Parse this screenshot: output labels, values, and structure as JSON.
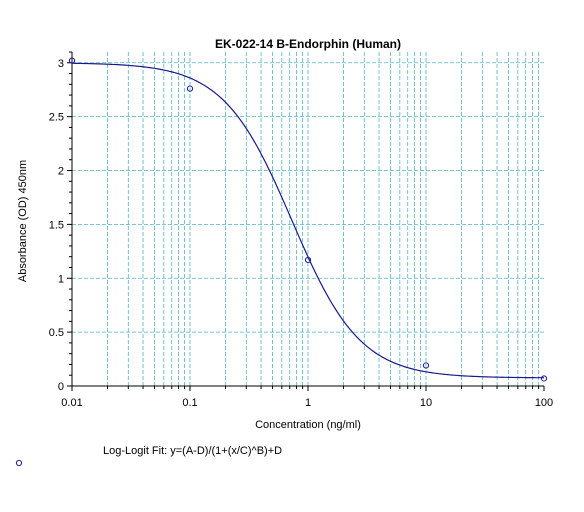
{
  "chart_data": {
    "type": "scatter",
    "title": "EK-022-14 B-Endorphin (Human)",
    "xlabel": "Concentration (ng/ml)",
    "ylabel": "Absorbance (OD) 450nm",
    "x_scale": "log",
    "xlim": [
      0.01,
      100
    ],
    "ylim": [
      0,
      3.1
    ],
    "x_ticks": [
      0.01,
      0.1,
      1,
      10,
      100
    ],
    "x_tick_labels": [
      "0.01",
      "0.1",
      "1",
      "10",
      "100"
    ],
    "y_ticks": [
      0,
      0.5,
      1,
      1.5,
      2,
      2.5,
      3
    ],
    "y_tick_labels": [
      "0",
      "0.5",
      "1",
      "1.5",
      "2",
      "2.5",
      "3"
    ],
    "grid": true,
    "series": [
      {
        "marker": "circle-open",
        "x": [
          0.01,
          0.1,
          1,
          10,
          100
        ],
        "y": [
          3.02,
          2.76,
          1.17,
          0.19,
          0.07
        ]
      }
    ],
    "fit": {
      "label": "Log-Logit Fit: y=(A-D)/(1+(x/C)^B)+D",
      "params": {
        "A": 3.0,
        "B": 1.5,
        "C": 0.73,
        "D": 0.075
      }
    },
    "colors": {
      "series": "#1a1aa0",
      "fit": "#1a1a8c",
      "grid": "#4fb3c8",
      "axis": "#000000"
    }
  }
}
